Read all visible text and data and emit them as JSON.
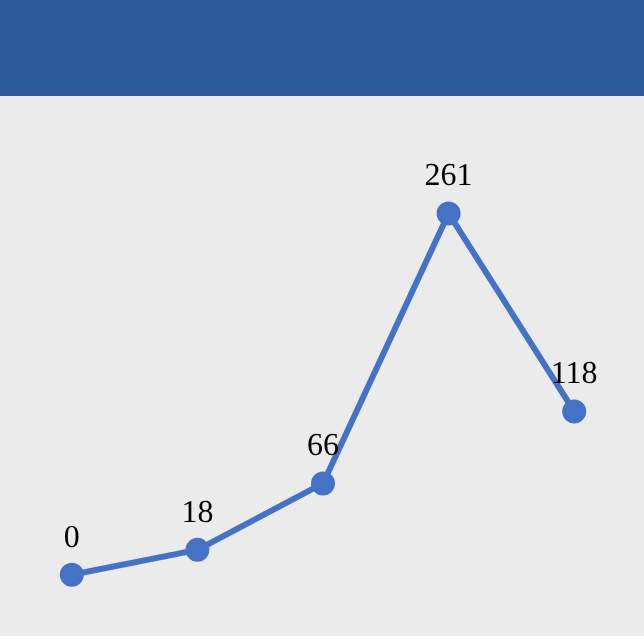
{
  "chart_data": {
    "type": "line",
    "categories": [
      null,
      null,
      null,
      null,
      null
    ],
    "series": [
      {
        "color": "#4472c4",
        "values": [
          0,
          18,
          66,
          261,
          118
        ]
      }
    ],
    "data_labels": true,
    "marker": "circle",
    "line_style": "solid",
    "tick_labels": false
  }
}
